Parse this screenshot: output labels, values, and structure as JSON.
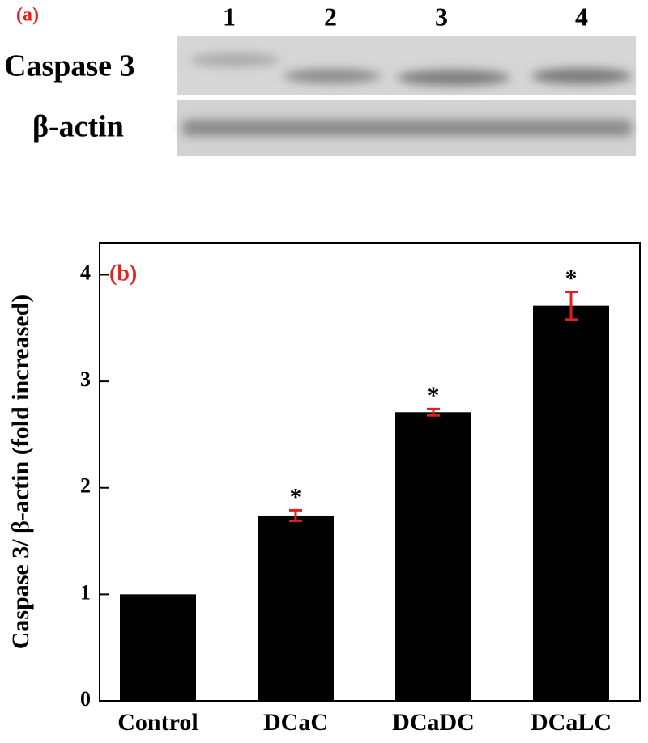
{
  "blot": {
    "panel_label": "(a)",
    "lanes": [
      "1",
      "2",
      "3",
      "4"
    ],
    "rows": [
      "Caspase 3",
      "β-actin"
    ]
  },
  "chart_data": {
    "type": "bar",
    "panel_label": "(b)",
    "ylabel": "Caspase 3/ β-actin (fold increased)",
    "categories": [
      "Control",
      "DCaC",
      "DCaDC",
      "DCaLC"
    ],
    "values": [
      1,
      1.74,
      2.71,
      3.71
    ],
    "errors": [
      null,
      0.05,
      0.03,
      0.13
    ],
    "significance": [
      null,
      "*",
      "*",
      "*"
    ],
    "color": "#000000",
    "error_color": "#e02020",
    "ylim": [
      0,
      4.3
    ],
    "yticks": [
      0,
      1,
      2,
      3,
      4
    ],
    "grid": false
  }
}
